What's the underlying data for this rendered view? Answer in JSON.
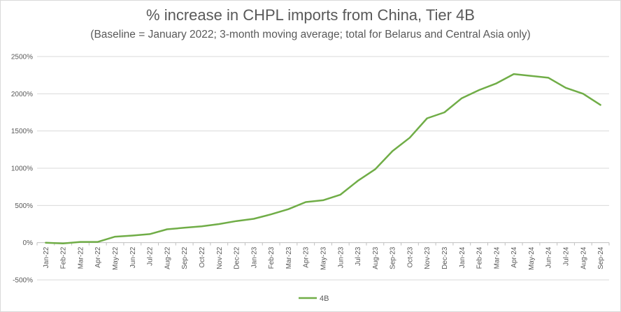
{
  "chart_data": {
    "type": "line",
    "title": "% increase in CHPL imports from China, Tier  4B",
    "subtitle": "(Baseline = January 2022; 3-month moving average; total for Belarus and Central Asia only)",
    "xlabel": "",
    "ylabel": "",
    "ylim": [
      -500,
      2500
    ],
    "yticks": [
      -500,
      0,
      500,
      1000,
      1500,
      2000,
      2500
    ],
    "ytick_labels": [
      "-500%",
      "0%",
      "500%",
      "1000%",
      "1500%",
      "2000%",
      "2500%"
    ],
    "grid": true,
    "legend_position": "bottom",
    "categories": [
      "Jan-22",
      "Feb-22",
      "Mar-22",
      "Apr-22",
      "May-22",
      "Jun-22",
      "Jul-22",
      "Aug-22",
      "Sep-22",
      "Oct-22",
      "Nov-22",
      "Dec-22",
      "Jan-23",
      "Feb-23",
      "Mar-23",
      "Apr-23",
      "May-23",
      "Jun-23",
      "Jul-23",
      "Aug-23",
      "Sep-23",
      "Oct-23",
      "Nov-23",
      "Dec-23",
      "Jan-24",
      "Feb-24",
      "Mar-24",
      "Apr-24",
      "May-24",
      "Jun-24",
      "Jul-24",
      "Aug-24",
      "Sep-24"
    ],
    "series": [
      {
        "name": "4B",
        "color": "#70ad47",
        "values": [
          0,
          -10,
          10,
          10,
          80,
          95,
          115,
          180,
          200,
          220,
          250,
          290,
          320,
          380,
          450,
          545,
          570,
          645,
          830,
          985,
          1230,
          1410,
          1670,
          1750,
          1940,
          2050,
          2140,
          2265,
          2240,
          2215,
          2080,
          2000,
          1850
        ]
      }
    ]
  }
}
